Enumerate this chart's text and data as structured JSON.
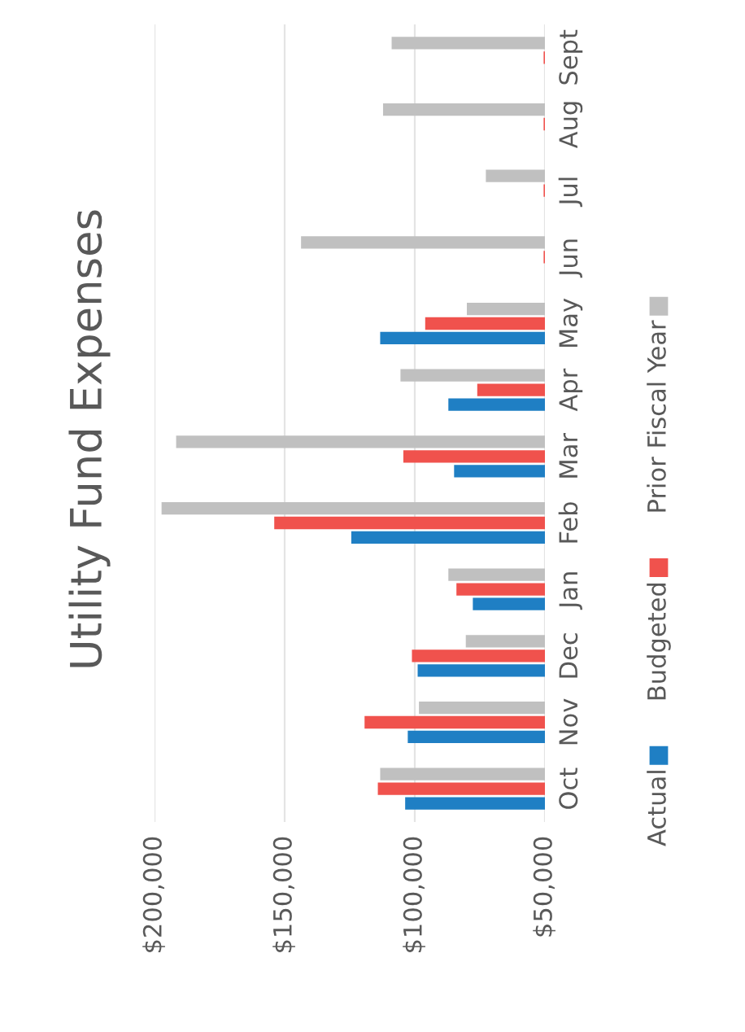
{
  "chart_data": {
    "type": "bar",
    "orientation": "horizontal",
    "title": "Utility Fund Expenses",
    "categories": [
      "Sept",
      "Aug",
      "Jul",
      "Jun",
      "May",
      "Apr",
      "Mar",
      "Feb",
      "Jan",
      "Dec",
      "Nov",
      "Oct"
    ],
    "series": [
      {
        "name": "Actual",
        "color": "#1f7fc4",
        "values": [
          null,
          null,
          null,
          null,
          113300,
          87100,
          84900,
          124400,
          77700,
          98900,
          102700,
          103700
        ]
      },
      {
        "name": "Budgeted",
        "color": "#f0524d",
        "values": [
          50500,
          50500,
          50500,
          50500,
          96000,
          76000,
          104400,
          154000,
          84000,
          101100,
          119300,
          114200
        ]
      },
      {
        "name": "Prior Fiscal Year",
        "color": "#c0c0c0",
        "values": [
          108900,
          112200,
          72700,
          143700,
          80000,
          105500,
          191700,
          197300,
          87100,
          80400,
          98400,
          113300
        ]
      }
    ],
    "xlim": [
      200000,
      50000
    ],
    "xticks": [
      {
        "value": 200000,
        "label": "$200,000"
      },
      {
        "value": 150000,
        "label": "$150,000"
      },
      {
        "value": 100000,
        "label": "$100,000"
      },
      {
        "value": 50000,
        "label": "$50,000"
      }
    ],
    "grid": "x",
    "legend": "right"
  }
}
